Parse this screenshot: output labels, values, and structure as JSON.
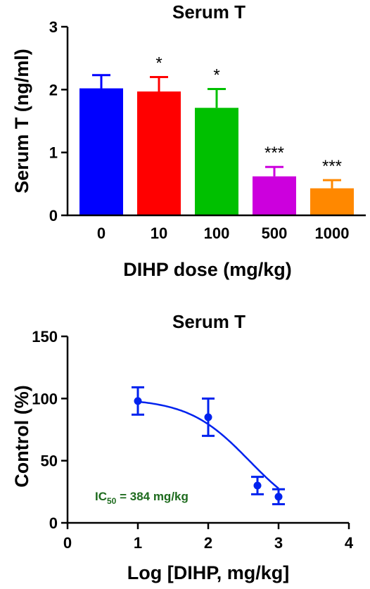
{
  "chart_data": [
    {
      "type": "bar",
      "title": "Serum T",
      "xlabel": "DIHP dose  (mg/kg)",
      "ylabel": "Serum T (ng/ml)",
      "ylim": [
        0,
        3
      ],
      "yticks": [
        0,
        1,
        2,
        3
      ],
      "categories": [
        "0",
        "10",
        "100",
        "500",
        "1000"
      ],
      "values": [
        2.02,
        1.97,
        1.71,
        0.62,
        0.43
      ],
      "error": [
        0.21,
        0.23,
        0.3,
        0.15,
        0.13
      ],
      "colors": [
        "#0000ff",
        "#ff0000",
        "#00c000",
        "#cc00dd",
        "#ff8800"
      ],
      "significance": [
        "",
        "*",
        "*",
        "***",
        "***"
      ],
      "grid": false
    },
    {
      "type": "scatter",
      "title": "Serum T",
      "xlabel": "Log [DIHP, mg/kg]",
      "ylabel": "Control  (%)",
      "xlim": [
        0,
        4
      ],
      "ylim": [
        0,
        150
      ],
      "xticks": [
        0,
        1,
        2,
        3,
        4
      ],
      "yticks": [
        0,
        50,
        100,
        150
      ],
      "series": [
        {
          "x": [
            1,
            2,
            2.7,
            3
          ],
          "y": [
            98,
            85,
            30,
            21
          ],
          "error": [
            11,
            15,
            7,
            6
          ],
          "color": "#0022ee"
        }
      ],
      "fit_curve": {
        "top": 100,
        "bottom": 0,
        "log_ic50": 2.584,
        "hill": 1
      },
      "annotation": {
        "prefix": "IC",
        "subscript": "50",
        "text": " = 384 mg/kg",
        "color": "#1e6b1e"
      },
      "grid": false
    }
  ]
}
